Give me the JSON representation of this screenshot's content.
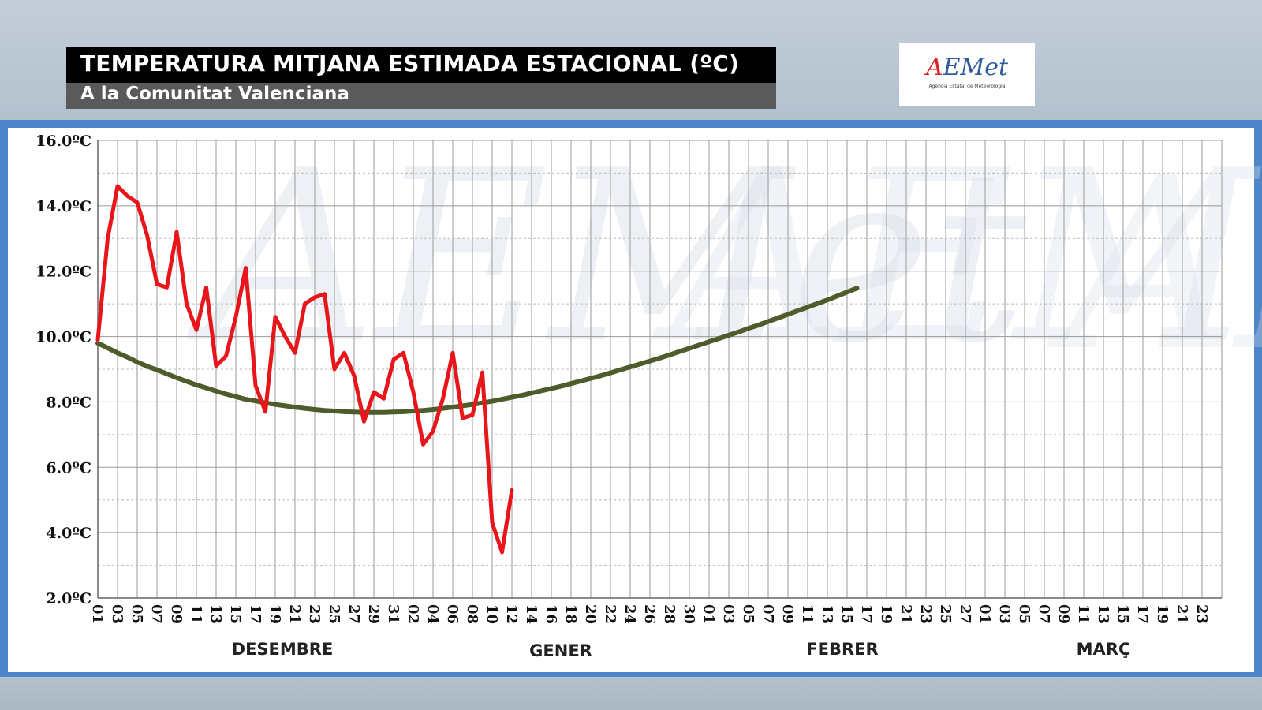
{
  "header": {
    "title": "TEMPERATURA MITJANA ESTIMADA ESTACIONAL (ºC)",
    "subtitle": "A la Comunitat Valenciana"
  },
  "logo": {
    "text": "AEMet",
    "subtitle": "Agencia Estatal de Meteorología"
  },
  "colors": {
    "observed": "#e8161b",
    "normal": "#4e5c2c",
    "grid": "#9a9a9a"
  },
  "chart_data": {
    "type": "line",
    "title": "TEMPERATURA MITJANA ESTIMADA ESTACIONAL (ºC)",
    "subtitle": "A la Comunitat Valenciana",
    "ylim": [
      2.0,
      16.0
    ],
    "yticks": [
      "2.0ºC",
      "4.0ºC",
      "6.0ºC",
      "8.0ºC",
      "10.0ºC",
      "12.0ºC",
      "14.0ºC",
      "16.0ºC"
    ],
    "x_tick_labels": [
      "01",
      "03",
      "05",
      "07",
      "09",
      "11",
      "13",
      "15",
      "17",
      "19",
      "21",
      "23",
      "25",
      "27",
      "29",
      "31",
      "02",
      "04",
      "06",
      "08",
      "10",
      "12",
      "14",
      "16",
      "18",
      "20",
      "22",
      "24",
      "26",
      "28",
      "30",
      "01",
      "03",
      "05",
      "07",
      "09",
      "11",
      "13",
      "15",
      "17",
      "19",
      "21",
      "23",
      "25",
      "27",
      "01",
      "03",
      "05",
      "07",
      "09",
      "11",
      "13",
      "15",
      "17",
      "19",
      "21",
      "23"
    ],
    "months": [
      "DESEMBRE",
      "GENER",
      "FEBRER",
      "MARÇ"
    ],
    "grid": true,
    "series": [
      {
        "key": "observed",
        "values": [
          9.9,
          13.0,
          14.6,
          14.3,
          14.1,
          13.1,
          11.6,
          11.5,
          13.2,
          11.0,
          10.2,
          11.5,
          9.1,
          9.4,
          10.6,
          12.1,
          8.5,
          7.7,
          10.6,
          10.0,
          9.5,
          11.0,
          11.2,
          11.3,
          9.0,
          9.5,
          8.8,
          7.4,
          8.3,
          8.1,
          9.3,
          9.5,
          8.3,
          6.7,
          7.1,
          8.1,
          9.5,
          7.5,
          7.6,
          8.9,
          4.3,
          3.4,
          5.3
        ]
      },
      {
        "key": "normal",
        "values": [
          9.8,
          9.65,
          9.5,
          9.37,
          9.22,
          9.09,
          8.98,
          8.86,
          8.74,
          8.63,
          8.52,
          8.43,
          8.33,
          8.24,
          8.16,
          8.08,
          8.03,
          7.97,
          7.92,
          7.88,
          7.84,
          7.8,
          7.77,
          7.74,
          7.72,
          7.7,
          7.69,
          7.68,
          7.68,
          7.68,
          7.69,
          7.7,
          7.72,
          7.74,
          7.77,
          7.8,
          7.84,
          7.88,
          7.92,
          7.97,
          8.02,
          8.08,
          8.14,
          8.2,
          8.27,
          8.34,
          8.41,
          8.48,
          8.56,
          8.64,
          8.72,
          8.8,
          8.89,
          8.98,
          9.07,
          9.16,
          9.25,
          9.34,
          9.44,
          9.54,
          9.64,
          9.74,
          9.84,
          9.94,
          10.04,
          10.14,
          10.25,
          10.35,
          10.46,
          10.57,
          10.68,
          10.79,
          10.9,
          11.01,
          11.12,
          11.24,
          11.36,
          11.48
        ]
      }
    ]
  }
}
